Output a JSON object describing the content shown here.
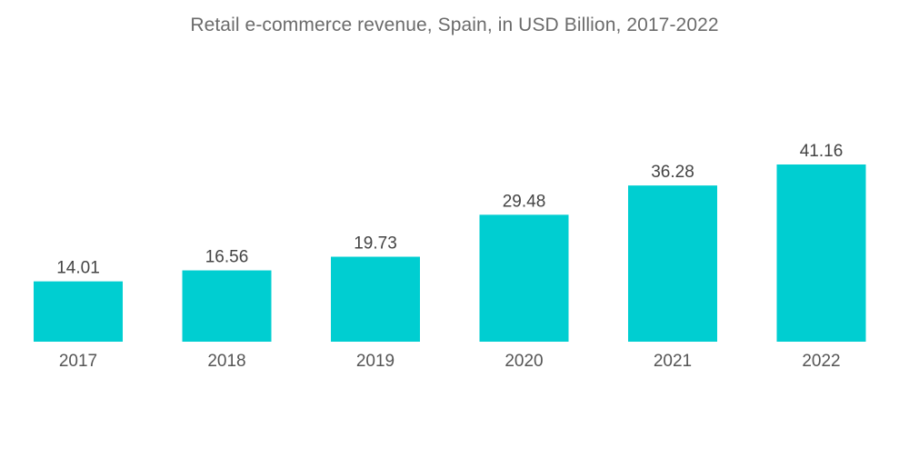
{
  "chart_data": {
    "type": "bar",
    "title": "Retail e-commerce revenue, Spain, in USD Billion, 2017-2022",
    "xlabel": "",
    "ylabel": "",
    "categories": [
      "2017",
      "2018",
      "2019",
      "2020",
      "2021",
      "2022"
    ],
    "values": [
      14.01,
      16.56,
      19.73,
      29.48,
      36.28,
      41.16
    ],
    "value_labels": [
      "14.01",
      "16.56",
      "19.73",
      "29.48",
      "36.28",
      "41.16"
    ],
    "ylim": [
      0,
      41.16
    ],
    "grid": false,
    "legend": "none",
    "bar_color": "#00CED1"
  }
}
